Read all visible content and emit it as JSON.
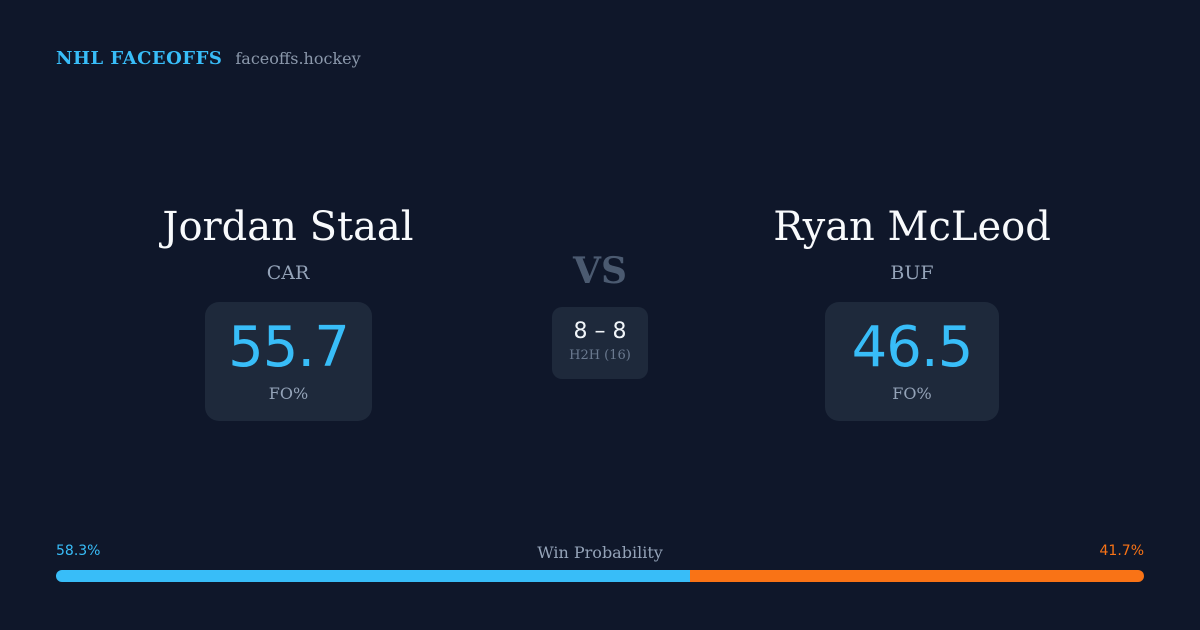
{
  "brand": {
    "title": "NHL FACEOFFS",
    "domain": "faceoffs.hockey",
    "accent_color": "#38bdf8"
  },
  "player_left": {
    "name": "Jordan Staal",
    "team": "CAR",
    "fo_value": "55.7",
    "fo_label": "FO%"
  },
  "player_right": {
    "name": "Ryan McLeod",
    "team": "BUF",
    "fo_value": "46.5",
    "fo_label": "FO%"
  },
  "versus": {
    "label": "VS",
    "h2h_score": "8 – 8",
    "h2h_label": "H2H (16)"
  },
  "win_probability": {
    "title": "Win Probability",
    "left_label": "58.3%",
    "right_label": "41.7%",
    "left_fraction": 0.583,
    "right_fraction": 0.417,
    "left_color": "#38bdf8",
    "right_color": "#f97316"
  }
}
